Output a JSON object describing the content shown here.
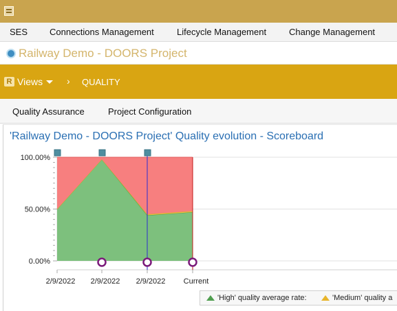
{
  "window": {
    "app_icon": "app-menu-icon"
  },
  "menu": {
    "items": [
      "SES",
      "Connections Management",
      "Lifecycle Management",
      "Change Management"
    ]
  },
  "project": {
    "icon": "project-icon",
    "title": "Railway Demo - DOORS Project"
  },
  "toolbar": {
    "logo_letter": "R",
    "views_label": "Views",
    "breadcrumb_separator": "›",
    "breadcrumb": "QUALITY"
  },
  "tabs": [
    "Quality Assurance",
    "Project Configuration"
  ],
  "colors": {
    "accent": "#d9a512",
    "title_bar": "#c9a44e",
    "high": "#7dc07d",
    "medium": "#f0c040",
    "low": "#f77f7f",
    "marker": "#7a1a7a",
    "baseline_line": "#2b2bd0",
    "current_line": "#c01818",
    "chart_title": "#2a6fb3"
  },
  "chart": {
    "title": "'Railway Demo - DOORS Project' Quality evolution - Scoreboard"
  },
  "chart_data": {
    "type": "area",
    "title": "'Railway Demo - DOORS Project' Quality evolution - Scoreboard",
    "categories": [
      "2/9/2022",
      "2/9/2022",
      "2/9/2022",
      "Current"
    ],
    "ylim": [
      0,
      100
    ],
    "yticks": [
      "0.00%",
      "50.00%",
      "100.00%"
    ],
    "grid": true,
    "stacked": true,
    "series": [
      {
        "name": "'High' quality average rate:",
        "color": "#7dc07d",
        "values": [
          50,
          98,
          44,
          47
        ]
      },
      {
        "name": "'Medium' quality a",
        "color": "#f0c040",
        "values": [
          0,
          0,
          1,
          1
        ]
      },
      {
        "name": "",
        "color": "#f77f7f",
        "values": [
          50,
          2,
          55,
          52
        ]
      }
    ],
    "legend_position": "bottom-right"
  }
}
